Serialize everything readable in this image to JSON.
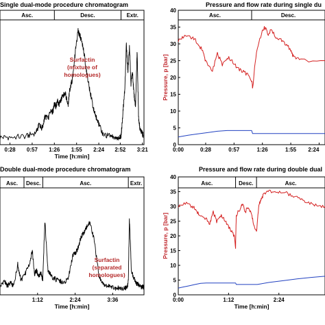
{
  "chart_data": [
    {
      "type": "line",
      "title": "Single dual-mode procedure chromatogram",
      "xlabel": "Time [h:min]",
      "ylabel": "",
      "x_ticks": [
        "0:28",
        "0:57",
        "1:26",
        "1:55",
        "2:24",
        "2:52",
        "3:21"
      ],
      "x_tick_values": [
        28,
        57,
        86,
        115,
        144,
        172,
        201
      ],
      "xlim": [
        15,
        203
      ],
      "segments": [
        {
          "label": "Asc.",
          "start": 15,
          "end": 86
        },
        {
          "label": "Desc.",
          "start": 86,
          "end": 173
        },
        {
          "label": "Extr.",
          "start": 173,
          "end": 203
        }
      ],
      "annotations": [
        {
          "lines": [
            "Surfactin",
            "(mixture of",
            "homologues)"
          ]
        }
      ],
      "series": [
        {
          "color": "#000000",
          "x": [
            15,
            30,
            50,
            62,
            66,
            70,
            74,
            78,
            82,
            84,
            86,
            88,
            90,
            92,
            96,
            100,
            104,
            106,
            110,
            114,
            117,
            120,
            124,
            128,
            132,
            136,
            140,
            144,
            150,
            160,
            168,
            172,
            173,
            174,
            176,
            178,
            180,
            182,
            184,
            186,
            188,
            190,
            192,
            194,
            196,
            198,
            200,
            202
          ],
          "y": [
            0.04,
            0.04,
            0.05,
            0.08,
            0.15,
            0.12,
            0.22,
            0.2,
            0.28,
            0.25,
            0.33,
            0.3,
            0.35,
            0.32,
            0.38,
            0.42,
            0.32,
            0.45,
            0.55,
            0.82,
            0.95,
            0.9,
            0.8,
            0.6,
            0.45,
            0.32,
            0.22,
            0.15,
            0.06,
            0.05,
            0.04,
            0.04,
            0.05,
            0.12,
            0.3,
            0.45,
            0.85,
            0.6,
            0.82,
            0.5,
            0.6,
            0.4,
            0.3,
            0.78,
            0.2,
            0.1,
            0.08,
            0.06
          ]
        }
      ]
    },
    {
      "type": "line",
      "title": "Pressure and flow rate during single du",
      "xlabel": "",
      "ylabel": "Pressure, p [bar]",
      "x_ticks": [
        "0:00",
        "0:28",
        "0:57",
        "1:26",
        "1:55",
        "2:24"
      ],
      "x_tick_values": [
        0,
        28,
        57,
        86,
        115,
        144
      ],
      "xlim": [
        0,
        150
      ],
      "ylim": [
        0,
        40
      ],
      "y_ticks": [
        0,
        5,
        10,
        15,
        20,
        25,
        30,
        35,
        40
      ],
      "segments": [
        {
          "label": "Asc.",
          "start": 0,
          "end": 75
        },
        {
          "label": "Desc.",
          "start": 75,
          "end": 150
        }
      ],
      "series": [
        {
          "color": "#d42020",
          "x": [
            0,
            5,
            15,
            20,
            25,
            28,
            35,
            40,
            45,
            50,
            55,
            60,
            65,
            70,
            75,
            76,
            80,
            85,
            88,
            92,
            95,
            100,
            105,
            110,
            115,
            118,
            125,
            150
          ],
          "y": [
            31,
            32,
            32,
            30,
            28,
            25,
            22,
            27,
            24,
            26,
            25,
            23,
            22,
            21,
            19,
            17,
            28,
            33,
            35,
            33,
            34,
            32,
            31,
            30,
            28,
            26,
            25,
            25
          ]
        },
        {
          "color": "#2040c0",
          "x": [
            0,
            10,
            20,
            30,
            40,
            50,
            57,
            70,
            75,
            76,
            100,
            150
          ],
          "y": [
            2.3,
            2.8,
            3.2,
            3.6,
            4.0,
            4.2,
            4.2,
            4.2,
            4.2,
            3.3,
            3.3,
            3.3
          ]
        }
      ]
    },
    {
      "type": "line",
      "title": "Double dual-mode procedure chromatogram",
      "xlabel": "Time [h:min]",
      "ylabel": "",
      "x_ticks": [
        "1:12",
        "2:24",
        "3:36"
      ],
      "x_tick_values": [
        72,
        144,
        216
      ],
      "xlim": [
        0,
        276
      ],
      "segments": [
        {
          "label": "Asc.",
          "start": 0,
          "end": 46
        },
        {
          "label": "Desc.",
          "start": 46,
          "end": 82
        },
        {
          "label": "Asc.",
          "start": 82,
          "end": 246
        },
        {
          "label": "Extr.",
          "start": 246,
          "end": 276
        }
      ],
      "annotations": [
        {
          "lines": [
            "Surfactin",
            "(separated",
            "homologues)"
          ]
        }
      ],
      "series": [
        {
          "color": "#000000",
          "x": [
            0,
            8,
            14,
            20,
            26,
            34,
            40,
            48,
            56,
            62,
            66,
            70,
            74,
            78,
            82,
            86,
            92,
            100,
            110,
            120,
            130,
            140,
            145,
            150,
            155,
            160,
            165,
            172,
            180,
            190,
            200,
            210,
            220,
            230,
            240,
            244,
            246,
            248,
            252,
            256,
            260,
            264,
            268,
            272,
            276
          ],
          "y": [
            0.05,
            0.12,
            0.06,
            0.1,
            0.06,
            0.28,
            0.12,
            0.18,
            0.28,
            0.42,
            0.18,
            0.22,
            0.15,
            0.2,
            0.12,
            0.72,
            0.22,
            0.15,
            0.12,
            0.1,
            0.12,
            0.38,
            0.4,
            0.45,
            0.55,
            0.6,
            0.65,
            0.7,
            0.55,
            0.15,
            0.08,
            0.06,
            0.04,
            0.04,
            0.04,
            0.05,
            0.12,
            0.75,
            0.2,
            0.15,
            0.1,
            0.08,
            0.06,
            0.05,
            0.05
          ]
        }
      ]
    },
    {
      "type": "line",
      "title": "Pressure and flow rate during double dual",
      "xlabel": "Time [h:min]",
      "ylabel": "Pressure, p [bar]",
      "x_ticks": [
        "0:00",
        "1:12",
        "2:24"
      ],
      "x_tick_values": [
        0,
        72,
        144
      ],
      "xlim": [
        0,
        210
      ],
      "ylim": [
        0,
        40
      ],
      "y_ticks": [
        0,
        5,
        10,
        15,
        20,
        25,
        30,
        35,
        40
      ],
      "segments": [
        {
          "label": "Asc.",
          "start": 0,
          "end": 82
        },
        {
          "label": "Desc.",
          "start": 82,
          "end": 112
        },
        {
          "label": "Asc.",
          "start": 112,
          "end": 210
        }
      ],
      "series": [
        {
          "color": "#d42020",
          "x": [
            0,
            10,
            20,
            25,
            30,
            40,
            45,
            50,
            55,
            60,
            65,
            70,
            75,
            80,
            82,
            83,
            88,
            92,
            96,
            100,
            105,
            108,
            112,
            115,
            118,
            122,
            130,
            140,
            150,
            160,
            170,
            180,
            190,
            200,
            210
          ],
          "y": [
            30,
            31,
            30,
            29,
            27,
            26,
            24,
            28,
            25,
            27,
            26,
            24,
            22,
            20,
            16,
            27,
            29,
            31,
            28,
            30,
            27,
            24,
            21,
            30,
            32,
            34,
            35,
            35,
            35,
            34,
            33,
            32,
            31,
            30,
            30
          ]
        },
        {
          "color": "#2040c0",
          "x": [
            0,
            8,
            16,
            24,
            32,
            40,
            60,
            82,
            83,
            112,
            113,
            130,
            150,
            170,
            190,
            210
          ],
          "y": [
            2.3,
            2.7,
            3.1,
            3.5,
            3.9,
            4.0,
            4.0,
            4.0,
            3.5,
            3.5,
            3.5,
            4.2,
            4.8,
            5.4,
            5.9,
            6.3
          ]
        }
      ]
    }
  ]
}
